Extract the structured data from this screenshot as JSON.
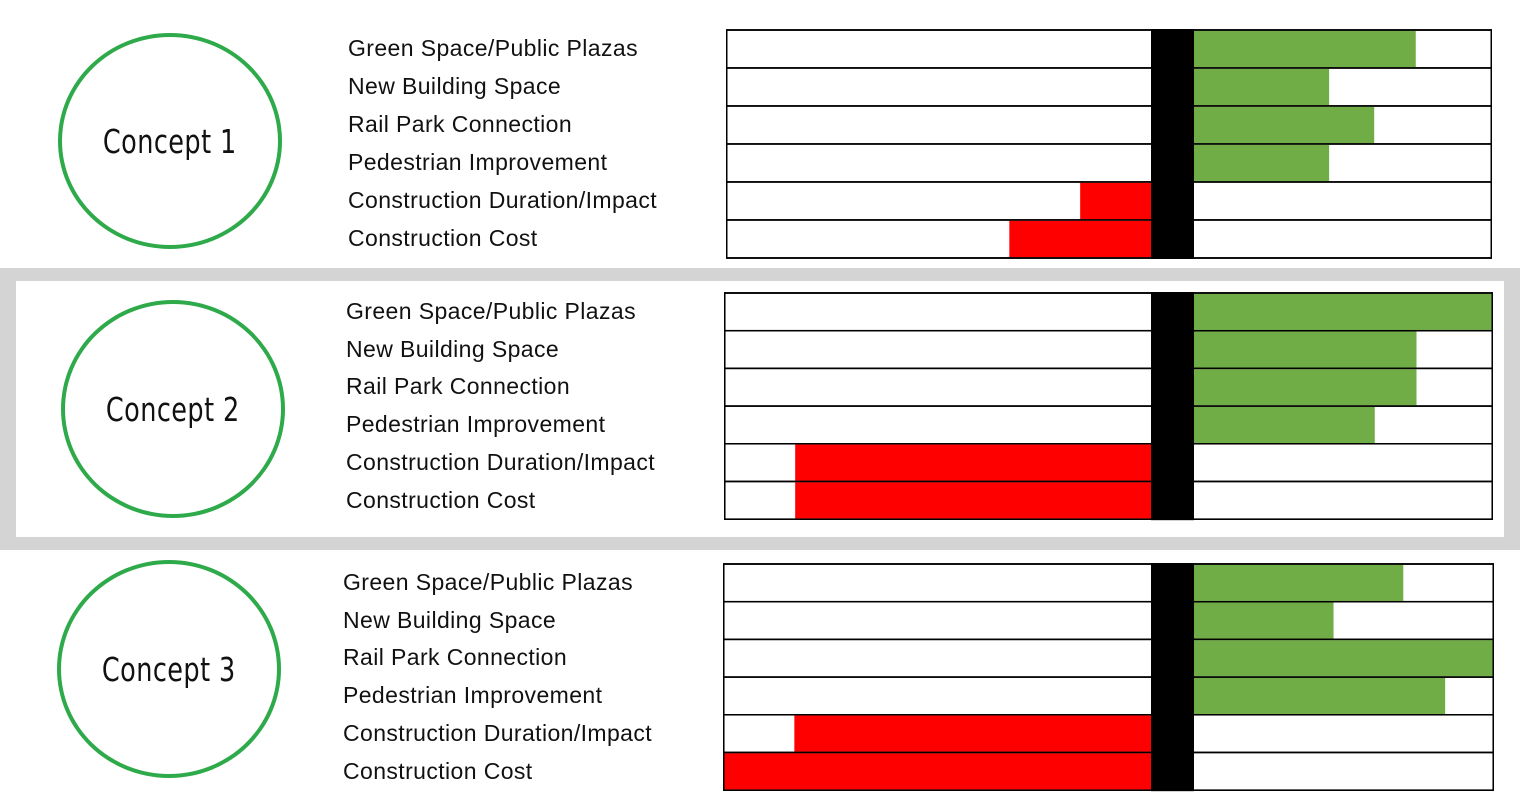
{
  "metrics": [
    "Green Space/Public Plazas",
    "New Building Space",
    "Rail Park Connection",
    "Pedestrian Improvement",
    "Construction Duration/Impact",
    "Construction Cost"
  ],
  "colors": {
    "positive": "#70ad47",
    "negative": "#ff0000",
    "divider": "#000000",
    "circle": "#2eaa4a",
    "highlight_frame": "#d4d4d4"
  },
  "chart_data": [
    {
      "type": "bar",
      "title": "Concept 1",
      "categories": [
        "Green Space/Public Plazas",
        "New Building Space",
        "Rail Park Connection",
        "Pedestrian Improvement",
        "Construction Duration/Impact",
        "Construction Cost"
      ],
      "values": [
        3.2,
        1.95,
        2.6,
        1.95,
        -1.0,
        -2.0
      ],
      "xlim": [
        -6,
        4.3
      ]
    },
    {
      "type": "bar",
      "title": "Concept 2",
      "highlighted": true,
      "categories": [
        "Green Space/Public Plazas",
        "New Building Space",
        "Rail Park Connection",
        "Pedestrian Improvement",
        "Construction Duration/Impact",
        "Construction Cost"
      ],
      "values": [
        4.3,
        3.2,
        3.2,
        2.6,
        -5.0,
        -5.0
      ],
      "xlim": [
        -6,
        4.3
      ]
    },
    {
      "type": "bar",
      "title": "Concept 3",
      "categories": [
        "Green Space/Public Plazas",
        "New Building Space",
        "Rail Park Connection",
        "Pedestrian Improvement",
        "Construction Duration/Impact",
        "Construction Cost"
      ],
      "values": [
        3.0,
        2.0,
        4.3,
        3.6,
        -5.0,
        -6.0
      ],
      "xlim": [
        -6,
        4.3
      ]
    }
  ]
}
